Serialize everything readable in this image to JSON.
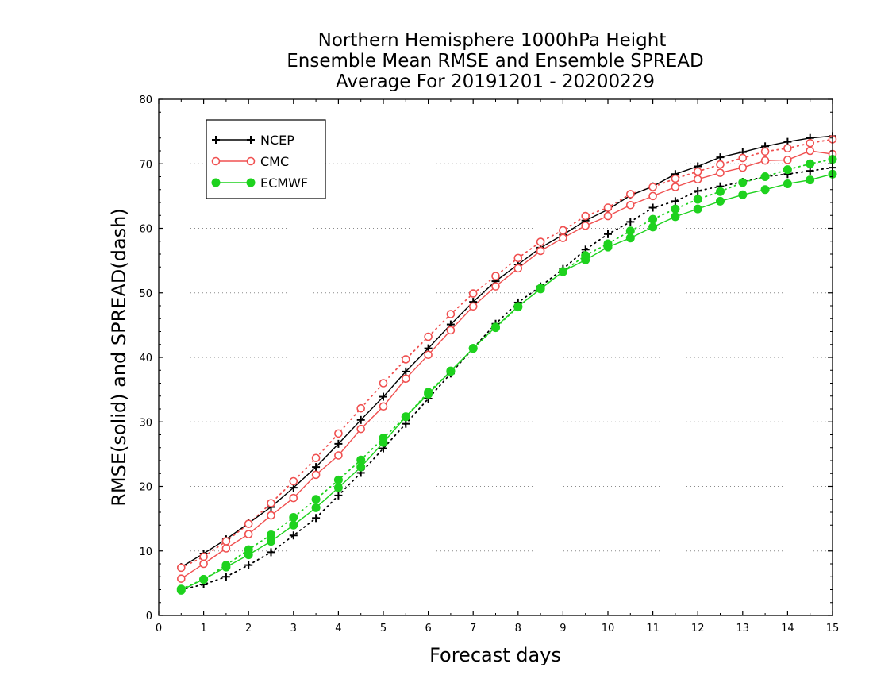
{
  "chart_data": {
    "type": "line",
    "title": [
      "Northern Hemisphere 1000hPa Height",
      "Ensemble Mean RMSE and Ensemble SPREAD",
      "Average For 20191201 - 20200229"
    ],
    "xlabel": "Forecast days",
    "ylabel": "RMSE(solid) and SPREAD(dash)",
    "xlim": [
      0,
      15
    ],
    "ylim": [
      0,
      80
    ],
    "xticks": [
      "0",
      "1",
      "2",
      "3",
      "4",
      "5",
      "6",
      "7",
      "8",
      "9",
      "10",
      "11",
      "12",
      "13",
      "14",
      "15"
    ],
    "yticks": [
      "0",
      "10",
      "20",
      "30",
      "40",
      "50",
      "60",
      "70",
      "80"
    ],
    "grid": "horizontal dotted",
    "legend_position": "top-left",
    "x": [
      0.5,
      1,
      1.5,
      2,
      2.5,
      3,
      3.5,
      4,
      4.5,
      5,
      5.5,
      6,
      6.5,
      7,
      7.5,
      8,
      8.5,
      9,
      9.5,
      10,
      10.5,
      11,
      11.5,
      12,
      12.5,
      13,
      13.5,
      14,
      14.5,
      15
    ],
    "series": [
      {
        "name": "NCEP",
        "color": "#000000",
        "marker": "plus",
        "rmse": [
          7.5,
          9.6,
          11.8,
          14.3,
          16.8,
          19.8,
          23.0,
          26.6,
          30.3,
          33.9,
          37.8,
          41.4,
          45.1,
          48.6,
          51.8,
          54.4,
          57.0,
          59.0,
          61.2,
          62.9,
          65.1,
          66.5,
          68.4,
          69.6,
          71.0,
          71.8,
          72.7,
          73.4,
          74.0,
          74.3
        ],
        "spread": [
          4.0,
          4.8,
          6.0,
          7.8,
          9.8,
          12.4,
          15.1,
          18.6,
          22.1,
          25.9,
          29.7,
          33.6,
          37.5,
          41.4,
          45.2,
          48.5,
          51.0,
          53.7,
          56.7,
          59.1,
          61.0,
          63.2,
          64.2,
          65.8,
          66.5,
          67.2,
          68.0,
          68.4,
          68.9,
          69.4
        ]
      },
      {
        "name": "CMC",
        "color": "#f05050",
        "marker": "open-circle",
        "rmse": [
          5.7,
          8.0,
          10.4,
          12.6,
          15.5,
          18.2,
          21.8,
          24.8,
          28.9,
          32.4,
          36.7,
          40.4,
          44.2,
          47.9,
          51.0,
          53.8,
          56.5,
          58.5,
          60.4,
          61.9,
          63.6,
          65.0,
          66.4,
          67.6,
          68.6,
          69.4,
          70.5,
          70.6,
          72.0,
          71.5
        ],
        "spread": [
          7.4,
          9.1,
          11.5,
          14.2,
          17.4,
          20.8,
          24.4,
          28.2,
          32.1,
          36.0,
          39.7,
          43.2,
          46.7,
          49.9,
          52.6,
          55.4,
          57.9,
          59.7,
          61.9,
          63.2,
          65.3,
          66.4,
          67.7,
          68.8,
          69.9,
          70.9,
          71.9,
          72.4,
          73.2,
          73.8
        ]
      },
      {
        "name": "ECMWF",
        "color": "#1ed21e",
        "marker": "filled-circle",
        "rmse": [
          3.9,
          5.6,
          7.5,
          9.4,
          11.5,
          14.0,
          16.7,
          19.8,
          23.0,
          26.8,
          30.8,
          34.3,
          37.9,
          41.4,
          44.7,
          47.9,
          50.6,
          53.3,
          55.1,
          57.1,
          58.5,
          60.2,
          61.8,
          63.0,
          64.2,
          65.2,
          66.0,
          66.9,
          67.5,
          68.4
        ],
        "spread": [
          4.1,
          5.6,
          7.8,
          10.2,
          12.5,
          15.2,
          18.0,
          21.0,
          24.1,
          27.5,
          30.8,
          34.6,
          37.8,
          41.4,
          44.6,
          47.8,
          50.7,
          53.3,
          55.8,
          57.6,
          59.6,
          61.4,
          63.0,
          64.5,
          65.7,
          67.1,
          68.0,
          69.1,
          70.0,
          70.7
        ]
      }
    ]
  }
}
